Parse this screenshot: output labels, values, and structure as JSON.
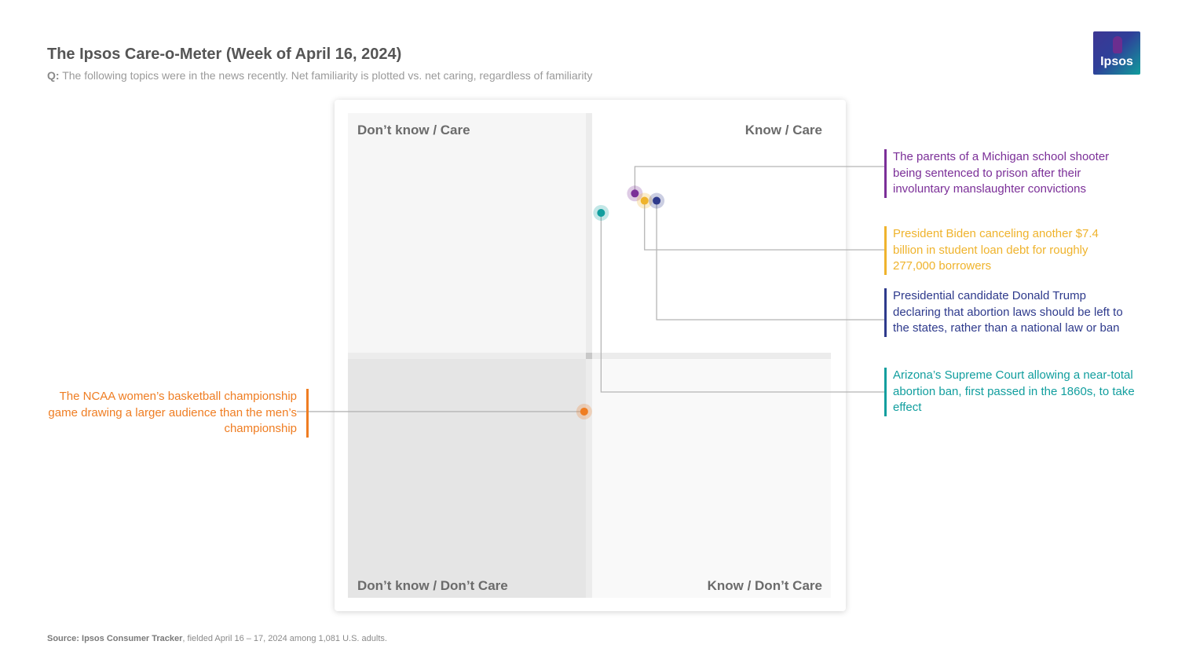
{
  "title": "The Ipsos Care-o-Meter (Week of April 16, 2024)",
  "subtitle_prefix": "Q:",
  "subtitle": "The following topics were in the news recently. Net familiarity is plotted vs. net caring, regardless of familiarity",
  "logo_text": "Ipsos",
  "source_label": "Source:",
  "source_name": "Ipsos Consumer Tracker",
  "source_rest": ", fielded April 16 – 17, 2024 among 1,081 U.S. adults.",
  "chart_data": {
    "type": "scatter",
    "xlabel": "Net familiarity",
    "ylabel": "Net caring",
    "grid": false,
    "quadrants": {
      "top_left": "Don’t know / Care",
      "top_right": "Know / Care",
      "bottom_left": "Don’t know / Don’t Care",
      "bottom_right": "Know / Don’t Care"
    },
    "points": [
      {
        "label": "The parents of a Michigan school shooter being sentenced to prison after their involuntary manslaughter convictions",
        "color": "#7b2f98",
        "x": 0.19,
        "y": 0.67
      },
      {
        "label": "President Biden canceling another $7.4 billion in student loan debt for roughly 277,000 borrowers",
        "color": "#efb32c",
        "x": 0.23,
        "y": 0.64
      },
      {
        "label": "Presidential candidate Donald Trump declaring that abortion laws should be left to the states, rather than a national law or ban",
        "color": "#2e3a8c",
        "x": 0.28,
        "y": 0.64
      },
      {
        "label": "Arizona’s Supreme Court allowing a near-total abortion ban, first passed in the 1860s, to take effect",
        "color": "#119e9e",
        "x": 0.05,
        "y": 0.59
      },
      {
        "label": "The NCAA women’s basketball championship game drawing a larger audience than the men’s championship",
        "color": "#ef7d22",
        "x": -0.02,
        "y": -0.23
      }
    ]
  }
}
